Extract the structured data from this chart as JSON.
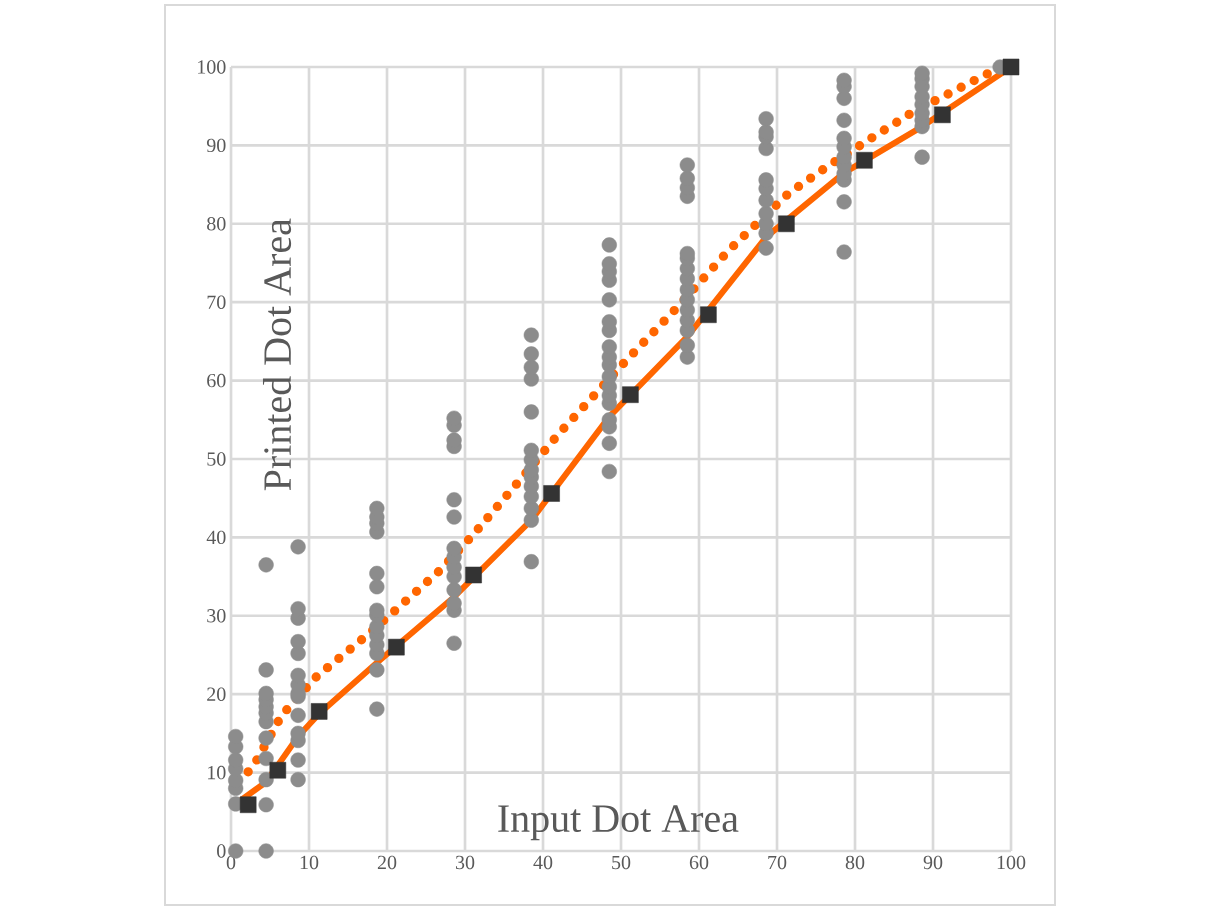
{
  "chart_data": {
    "type": "scatter",
    "xlabel": "Input Dot Area",
    "ylabel": "Printed Dot Area",
    "xlim": [
      0,
      100
    ],
    "ylim": [
      0,
      100
    ],
    "xticks": [
      0,
      10,
      20,
      30,
      40,
      50,
      60,
      70,
      80,
      90,
      100
    ],
    "yticks": [
      0,
      10,
      20,
      30,
      40,
      50,
      60,
      70,
      80,
      90,
      100
    ],
    "grid": true,
    "series": [
      {
        "type": "line",
        "color": "#ff6600",
        "marker": "none",
        "line_style": "dotted",
        "x": [
          2.2,
          3.3,
          6.5,
          10.8,
          17.3,
          20.5,
          26.8,
          31.1,
          36.6,
          42.1,
          50.7,
          56.7,
          63.8,
          71.5,
          76.6,
          81.9,
          87.5,
          93.0,
          96.9,
          100
        ],
        "values": [
          10.1,
          11.6,
          17.3,
          22.1,
          27.4,
          30.2,
          35.8,
          40.4,
          46.8,
          53.3,
          62.6,
          68.8,
          76.6,
          83.9,
          87.4,
          90.8,
          94.3,
          97.1,
          99.1,
          100
        ]
      },
      {
        "type": "line",
        "color": "#ff6600",
        "marker": "none",
        "line_style": "solid",
        "x": [
          0.6,
          4.5,
          8.6,
          11.3,
          18.7,
          28.6,
          38.5,
          48.5,
          58.5,
          68.6,
          78.6,
          88.6,
          100
        ],
        "values": [
          6,
          8.8,
          14.6,
          17.5,
          24,
          32.4,
          42.2,
          55.4,
          65.6,
          78.3,
          86.5,
          92.4,
          100
        ]
      },
      {
        "color": "#8c8c8c",
        "marker": "circle",
        "x": [
          0.6,
          0.6,
          0.6,
          0.6,
          0.6,
          0.6,
          0.6,
          0.6,
          4.5,
          4.5,
          4.5,
          4.5,
          4.5,
          4.5,
          4.5,
          4.5,
          4.5,
          4.5,
          4.5,
          4.5,
          8.6,
          8.6,
          8.6,
          8.6,
          8.6,
          8.6,
          8.6,
          8.6,
          8.6,
          8.6,
          8.6,
          8.6,
          8.6,
          8.6,
          18.7,
          18.7,
          18.7,
          18.7,
          18.7,
          18.7,
          18.7,
          18.7,
          18.7,
          18.7,
          18.7,
          18.7,
          18.7,
          18.7,
          28.6,
          28.6,
          28.6,
          28.6,
          28.6,
          28.6,
          28.6,
          28.6,
          28.6,
          28.6,
          28.6,
          28.6,
          28.6,
          28.6,
          38.5,
          38.5,
          38.5,
          38.5,
          38.5,
          38.5,
          38.5,
          38.5,
          38.5,
          38.5,
          38.5,
          38.5,
          38.5,
          38.5,
          48.5,
          48.5,
          48.5,
          48.5,
          48.5,
          48.5,
          48.5,
          48.5,
          48.5,
          48.5,
          48.5,
          48.5,
          48.5,
          48.5,
          48.5,
          48.5,
          48.5,
          48.5,
          58.5,
          58.5,
          58.5,
          58.5,
          58.5,
          58.5,
          58.5,
          58.5,
          58.5,
          58.5,
          58.5,
          58.5,
          58.5,
          58.5,
          58.5,
          68.6,
          68.6,
          68.6,
          68.6,
          68.6,
          68.6,
          68.6,
          68.6,
          68.6,
          68.6,
          68.6,
          78.6,
          78.6,
          78.6,
          78.6,
          78.6,
          78.6,
          78.6,
          78.6,
          78.6,
          78.6,
          78.6,
          78.6,
          88.6,
          88.6,
          88.6,
          88.6,
          88.6,
          88.6,
          88.6,
          88.6,
          88.6,
          98.6
        ],
        "values": [
          0,
          6,
          8,
          9,
          10.5,
          11.6,
          13.3,
          14.6,
          0,
          5.9,
          9.1,
          11.8,
          14.4,
          16.5,
          17.6,
          18.4,
          19.3,
          20.1,
          23.1,
          36.5,
          9.1,
          11.6,
          14.1,
          15.0,
          17.3,
          19.7,
          20.1,
          21.2,
          22.4,
          25.2,
          26.7,
          29.7,
          30.9,
          38.8,
          18.1,
          23.1,
          25.2,
          26.3,
          27.5,
          28.6,
          30.1,
          30.7,
          33.7,
          35.4,
          40.7,
          41.8,
          42.6,
          43.7,
          26.5,
          30.7,
          31.6,
          33.3,
          35.0,
          36.2,
          37.5,
          38.6,
          42.6,
          44.8,
          51.6,
          52.4,
          54.3,
          55.2,
          36.9,
          42.2,
          43.7,
          45.2,
          46.5,
          47.7,
          48.6,
          49.9,
          51.1,
          56.0,
          60.2,
          61.7,
          63.4,
          65.8,
          48.4,
          52.0,
          54.1,
          55.0,
          57.1,
          58.1,
          59.2,
          60.5,
          62.0,
          63.0,
          64.3,
          66.4,
          67.5,
          70.3,
          72.8,
          73.9,
          74.9,
          77.3,
          63.0,
          64.5,
          66.4,
          67.7,
          69.0,
          70.3,
          71.6,
          73.0,
          74.3,
          75.6,
          76.2,
          83.5,
          84.6,
          85.8,
          87.5,
          76.9,
          78.8,
          80.0,
          81.3,
          83.0,
          84.5,
          85.6,
          89.6,
          91.1,
          91.7,
          93.4,
          76.4,
          82.8,
          85.6,
          86.4,
          87.5,
          88.5,
          89.8,
          90.9,
          93.2,
          96.0,
          97.5,
          98.3,
          88.5,
          92.4,
          93.2,
          94.1,
          95.2,
          96.2,
          97.5,
          98.5,
          99.2,
          100
        ]
      },
      {
        "type": "scatter",
        "color": "#333333",
        "marker": "square",
        "x": [
          2.2,
          6.0,
          11.3,
          21.2,
          31.1,
          41.1,
          51.2,
          61.2,
          71.2,
          81.2,
          91.2,
          100
        ],
        "values": [
          5.9,
          10.3,
          17.8,
          26.0,
          35.2,
          45.6,
          58.2,
          68.4,
          80.0,
          88.1,
          93.9,
          100
        ]
      }
    ]
  }
}
